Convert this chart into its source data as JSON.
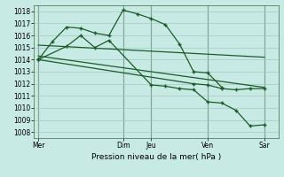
{
  "background_color": "#c8eae4",
  "grid_color": "#a0c8c0",
  "line_color": "#1a5c28",
  "ylabel_text": "Pression niveau de la mer( hPa )",
  "x_ticks_labels": [
    "Mer",
    "Dim",
    "Jeu",
    "Ven",
    "Sar"
  ],
  "x_ticks_pos": [
    0,
    6,
    8,
    12,
    16
  ],
  "ylim": [
    1007.5,
    1018.5
  ],
  "yticks": [
    1008,
    1009,
    1010,
    1011,
    1012,
    1013,
    1014,
    1015,
    1016,
    1017,
    1018
  ],
  "vline_x": [
    0,
    6,
    8,
    12,
    16
  ],
  "xlim": [
    -0.3,
    17.0
  ],
  "series1_x": [
    0,
    1,
    2,
    3,
    4,
    5,
    6,
    7,
    8,
    9,
    10,
    11,
    12,
    13
  ],
  "series1_y": [
    1014.0,
    1015.5,
    1016.7,
    1016.6,
    1016.2,
    1016.0,
    1018.1,
    1017.8,
    1017.4,
    1016.9,
    1015.3,
    1013.0,
    1012.9,
    1011.7
  ],
  "series2_x": [
    0,
    2,
    3,
    4,
    5,
    8,
    9,
    10,
    11,
    12,
    13,
    14,
    15,
    16
  ],
  "series2_y": [
    1014.0,
    1015.1,
    1016.0,
    1015.0,
    1015.6,
    1011.9,
    1011.8,
    1011.6,
    1011.5,
    1010.5,
    1010.4,
    1009.8,
    1008.5,
    1008.6
  ],
  "series3_x": [
    0,
    11,
    12,
    13,
    14,
    15,
    16
  ],
  "series3_y": [
    1014.0,
    1012.0,
    1011.9,
    1011.6,
    1011.5,
    1011.6,
    1011.6
  ],
  "trend1_x": [
    0,
    16
  ],
  "trend1_y": [
    1015.2,
    1014.2
  ],
  "trend2_x": [
    0,
    16
  ],
  "trend2_y": [
    1014.3,
    1011.7
  ]
}
